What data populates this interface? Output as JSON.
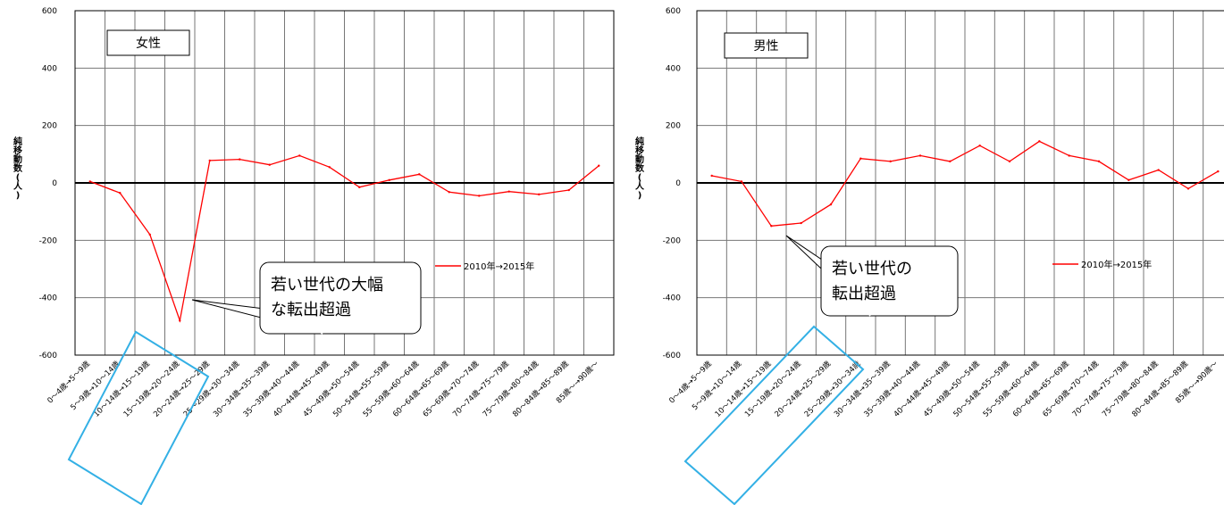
{
  "chart_data": [
    {
      "type": "line",
      "title": "女性",
      "ylabel": "純移動数(人)",
      "ylim": [
        -600,
        600
      ],
      "yticks": [
        600,
        400,
        200,
        0,
        -200,
        -400,
        -600
      ],
      "grid": true,
      "legend_position": "right",
      "series_color": "#ff0000",
      "categories": [
        "0～4歳→5～9歳",
        "5～9歳→10～14歳",
        "10～14歳→15～19歳",
        "15～19歳→20～24歳",
        "20～24歳→25～29歳",
        "25～29歳→30～34歳",
        "30～34歳→35～39歳",
        "35～39歳→40～44歳",
        "40～44歳→45～49歳",
        "45～49歳→50～54歳",
        "50～54歳→55～59歳",
        "55～59歳→60～64歳",
        "60～64歳→65～69歳",
        "65～69歳→70～74歳",
        "70～74歳→75～79歳",
        "75～79歳→80～84歳",
        "80～84歳→85～89歳",
        "85歳～→90歳～"
      ],
      "series": [
        {
          "name": "2010年→2015年",
          "values": [
            5,
            -35,
            -180,
            -480,
            78,
            82,
            63,
            95,
            55,
            -15,
            10,
            30,
            -32,
            -45,
            -30,
            -40,
            -25,
            60
          ]
        }
      ],
      "annotation": {
        "lines": [
          "若い世代の大幅",
          "な転出超過"
        ]
      }
    },
    {
      "type": "line",
      "title": "男性",
      "ylabel": "純移動数(人)",
      "ylim": [
        -600,
        600
      ],
      "yticks": [
        600,
        400,
        200,
        0,
        -200,
        -400,
        -600
      ],
      "grid": true,
      "legend_position": "right",
      "series_color": "#ff0000",
      "categories": [
        "0～4歳→5～9歳",
        "5～9歳→10～14歳",
        "10～14歳→15～19歳",
        "15～19歳→20～24歳",
        "20～24歳→25～29歳",
        "25～29歳→30～34歳",
        "30～34歳→35～39歳",
        "35～39歳→40～44歳",
        "40～44歳→45～49歳",
        "45～49歳→50～54歳",
        "50～54歳→55～59歳",
        "55～59歳→60～64歳",
        "60～64歳→65～69歳",
        "65～69歳→70～74歳",
        "70～74歳→75～79歳",
        "75～79歳→80～84歳",
        "80～84歳→85～89歳",
        "85歳～→90歳～"
      ],
      "series": [
        {
          "name": "2010年→2015年",
          "values": [
            25,
            5,
            -150,
            -140,
            -75,
            85,
            75,
            95,
            75,
            130,
            75,
            145,
            95,
            75,
            10,
            45,
            -20,
            40
          ]
        }
      ],
      "annotation": {
        "lines": [
          "若い世代の",
          "転出超過"
        ]
      }
    }
  ],
  "colors": {
    "series": "#ff0000",
    "highlight": "#33b0e5",
    "grid": "#777777",
    "axis": "#000000"
  }
}
